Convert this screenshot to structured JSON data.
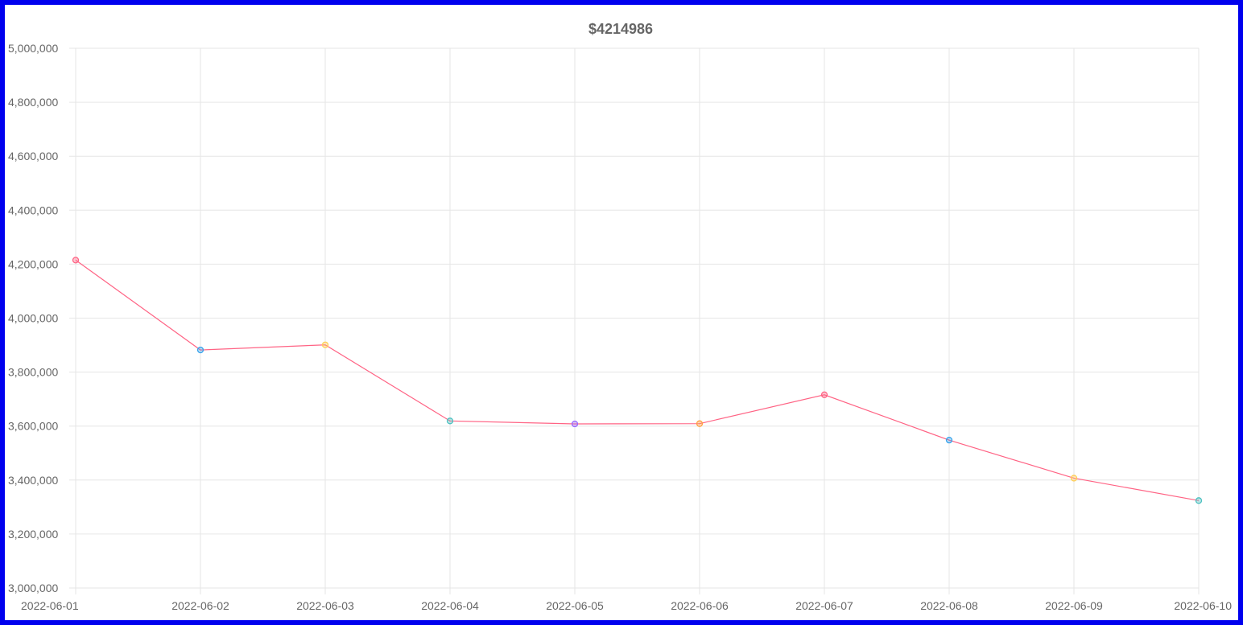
{
  "chart_data": {
    "type": "line",
    "title": "$4214986",
    "xlabel": "",
    "ylabel": "",
    "x": [
      "2022-06-01",
      "2022-06-02",
      "2022-06-03",
      "2022-06-04",
      "2022-06-05",
      "2022-06-06",
      "2022-06-07",
      "2022-06-08",
      "2022-06-09",
      "2022-06-10"
    ],
    "series": [
      {
        "values": [
          4214986,
          3882000,
          3901000,
          3619000,
          3608000,
          3609000,
          3716000,
          3548000,
          3407000,
          3324000
        ],
        "line_color": "#ff6384",
        "point_colors": [
          "#ff6384",
          "#36a2eb",
          "#ffcd56",
          "#4bc0c0",
          "#9966ff",
          "#ff9f40",
          "#ff6384",
          "#36a2eb",
          "#ffcd56",
          "#4bc0c0"
        ]
      }
    ],
    "ylim": [
      3000000,
      5000000
    ],
    "y_ticks": [
      "5,000,000",
      "4,800,000",
      "4,600,000",
      "4,400,000",
      "4,200,000",
      "4,000,000",
      "3,800,000",
      "3,600,000",
      "3,400,000",
      "3,200,000",
      "3,000,000"
    ],
    "grid": true,
    "legend": "none",
    "colors": {
      "border": "#0000ee",
      "grid": "#e6e6e6",
      "text": "#666666"
    }
  }
}
